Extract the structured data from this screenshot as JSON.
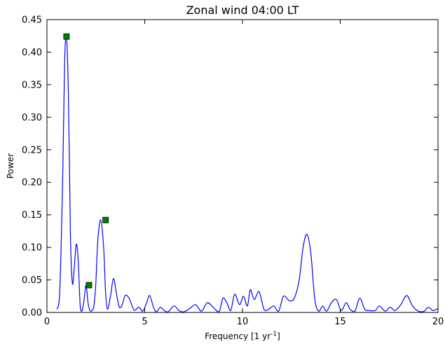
{
  "chart_data": {
    "type": "line",
    "title": "Zonal wind 04:00 LT",
    "xlabel_prefix": "Frequency [1 yr",
    "xlabel_sup": "-1",
    "xlabel_suffix": "]",
    "ylabel": "Power",
    "xlim": [
      0,
      20
    ],
    "ylim": [
      0,
      0.45
    ],
    "xticks": [
      0,
      5,
      10,
      15,
      20
    ],
    "xtick_labels": [
      "0",
      "5",
      "10",
      "15",
      "20"
    ],
    "yticks": [
      0,
      0.05,
      0.1,
      0.15,
      0.2,
      0.25,
      0.3,
      0.35,
      0.4,
      0.45
    ],
    "ytick_labels": [
      "0.00",
      "0.05",
      "0.10",
      "0.15",
      "0.20",
      "0.25",
      "0.30",
      "0.35",
      "0.40",
      "0.45"
    ],
    "grid": false,
    "line_color": "#0000ff",
    "marker_color": "#008000",
    "series": [
      {
        "x": [
          0.5,
          0.65,
          0.8,
          0.9,
          1.0,
          1.1,
          1.2,
          1.3,
          1.4,
          1.5,
          1.6,
          1.7,
          1.8,
          1.9,
          2.0,
          2.1,
          2.2,
          2.3,
          2.4,
          2.5,
          2.6,
          2.75,
          2.9,
          3.0,
          3.1,
          3.25,
          3.4,
          3.55,
          3.7,
          3.85,
          4.0,
          4.2,
          4.45,
          4.7,
          4.9,
          5.1,
          5.25,
          5.45,
          5.6,
          5.8,
          6.0,
          6.2,
          6.5,
          6.75,
          7.0,
          7.3,
          7.6,
          7.9,
          8.2,
          8.5,
          8.8,
          9.0,
          9.2,
          9.4,
          9.6,
          9.85,
          10.05,
          10.25,
          10.4,
          10.6,
          10.85,
          11.1,
          11.35,
          11.6,
          11.85,
          12.1,
          12.4,
          12.65,
          12.9,
          13.1,
          13.3,
          13.5,
          13.7,
          13.9,
          14.1,
          14.3,
          14.55,
          14.8,
          15.05,
          15.3,
          15.5,
          15.75,
          16.0,
          16.25,
          16.5,
          16.8,
          17.0,
          17.3,
          17.55,
          17.8,
          18.1,
          18.4,
          18.7,
          19.0,
          19.3,
          19.5,
          19.75,
          20.0
        ],
        "y": [
          0.005,
          0.03,
          0.2,
          0.38,
          0.424,
          0.33,
          0.12,
          0.045,
          0.07,
          0.105,
          0.08,
          0.01,
          0.003,
          0.02,
          0.042,
          0.015,
          0.003,
          0.003,
          0.01,
          0.045,
          0.11,
          0.142,
          0.1,
          0.03,
          0.005,
          0.025,
          0.052,
          0.03,
          0.008,
          0.012,
          0.026,
          0.022,
          0.004,
          0.008,
          0.002,
          0.015,
          0.026,
          0.008,
          0.001,
          0.008,
          0.003,
          0.001,
          0.01,
          0.003,
          0.001,
          0.006,
          0.012,
          0.002,
          0.015,
          0.008,
          0.001,
          0.022,
          0.015,
          0.003,
          0.028,
          0.012,
          0.025,
          0.01,
          0.035,
          0.02,
          0.032,
          0.005,
          0.005,
          0.01,
          0.002,
          0.025,
          0.018,
          0.022,
          0.05,
          0.1,
          0.12,
          0.09,
          0.02,
          0.002,
          0.01,
          0.002,
          0.015,
          0.02,
          0.003,
          0.015,
          0.005,
          0.002,
          0.022,
          0.005,
          0.003,
          0.003,
          0.01,
          0.002,
          0.008,
          0.003,
          0.012,
          0.026,
          0.01,
          0.002,
          0.002,
          0.008,
          0.003,
          0.006
        ]
      }
    ],
    "markers": [
      {
        "x": 1.0,
        "y": 0.424
      },
      {
        "x": 2.15,
        "y": 0.042
      },
      {
        "x": 3.0,
        "y": 0.142
      }
    ]
  }
}
